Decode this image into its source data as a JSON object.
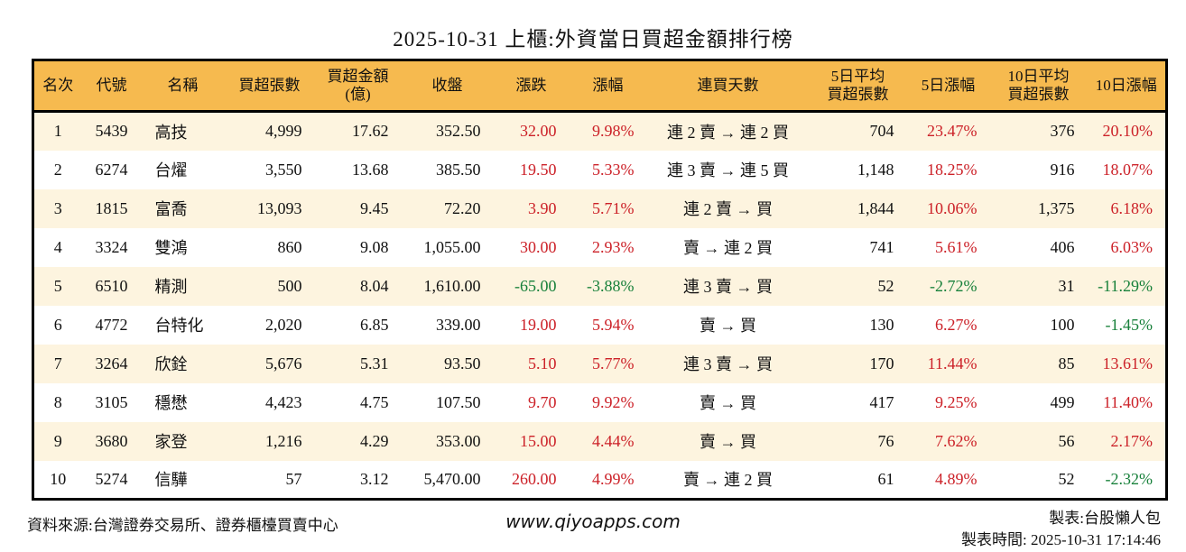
{
  "title": "2025-10-31 上櫃:外資當日買超金額排行榜",
  "colors": {
    "header_bg": "#F6BA4F",
    "row_alt_bg": "#FDF4DF",
    "up_red": "#CC2128",
    "down_green": "#17803A",
    "border": "#000000"
  },
  "chart_data": {
    "type": "table",
    "title": "2025-10-31 上櫃:外資當日買超金額排行榜",
    "columns": [
      {
        "key": "rank",
        "label": "名次",
        "align": "center"
      },
      {
        "key": "code",
        "label": "代號",
        "align": "center"
      },
      {
        "key": "name",
        "label": "名稱",
        "align": "left"
      },
      {
        "key": "lots",
        "label": "買超張數",
        "align": "right"
      },
      {
        "key": "amount",
        "label": "買超金額",
        "label2": "(億)",
        "align": "right"
      },
      {
        "key": "close",
        "label": "收盤",
        "align": "right"
      },
      {
        "key": "change",
        "label": "漲跌",
        "align": "right",
        "signed": true
      },
      {
        "key": "change_pct",
        "label": "漲幅",
        "align": "right",
        "signed": true
      },
      {
        "key": "streak",
        "label": "連買天數",
        "align": "center"
      },
      {
        "key": "avg5",
        "label": "5日平均",
        "label2": "買超張數",
        "align": "right"
      },
      {
        "key": "pct5",
        "label": "5日漲幅",
        "align": "right",
        "signed": true
      },
      {
        "key": "avg10",
        "label": "10日平均",
        "label2": "買超張數",
        "align": "right"
      },
      {
        "key": "pct10",
        "label": "10日漲幅",
        "align": "right",
        "signed": true
      }
    ],
    "rows": [
      {
        "rank": "1",
        "code": "5439",
        "name": "高技",
        "lots": "4,999",
        "amount": "17.62",
        "close": "352.50",
        "change": "32.00",
        "change_pct": "9.98%",
        "streak": "連 2 賣 → 連 2 買",
        "avg5": "704",
        "pct5": "23.47%",
        "avg10": "376",
        "pct10": "20.10%"
      },
      {
        "rank": "2",
        "code": "6274",
        "name": "台燿",
        "lots": "3,550",
        "amount": "13.68",
        "close": "385.50",
        "change": "19.50",
        "change_pct": "5.33%",
        "streak": "連 3 賣 → 連 5 買",
        "avg5": "1,148",
        "pct5": "18.25%",
        "avg10": "916",
        "pct10": "18.07%"
      },
      {
        "rank": "3",
        "code": "1815",
        "name": "富喬",
        "lots": "13,093",
        "amount": "9.45",
        "close": "72.20",
        "change": "3.90",
        "change_pct": "5.71%",
        "streak": "連 2 賣 → 買",
        "avg5": "1,844",
        "pct5": "10.06%",
        "avg10": "1,375",
        "pct10": "6.18%"
      },
      {
        "rank": "4",
        "code": "3324",
        "name": "雙鴻",
        "lots": "860",
        "amount": "9.08",
        "close": "1,055.00",
        "change": "30.00",
        "change_pct": "2.93%",
        "streak": "賣 → 連 2 買",
        "avg5": "741",
        "pct5": "5.61%",
        "avg10": "406",
        "pct10": "6.03%"
      },
      {
        "rank": "5",
        "code": "6510",
        "name": "精測",
        "lots": "500",
        "amount": "8.04",
        "close": "1,610.00",
        "change": "-65.00",
        "change_pct": "-3.88%",
        "streak": "連 3 賣 → 買",
        "avg5": "52",
        "pct5": "-2.72%",
        "avg10": "31",
        "pct10": "-11.29%"
      },
      {
        "rank": "6",
        "code": "4772",
        "name": "台特化",
        "lots": "2,020",
        "amount": "6.85",
        "close": "339.00",
        "change": "19.00",
        "change_pct": "5.94%",
        "streak": "賣 → 買",
        "avg5": "130",
        "pct5": "6.27%",
        "avg10": "100",
        "pct10": "-1.45%"
      },
      {
        "rank": "7",
        "code": "3264",
        "name": "欣銓",
        "lots": "5,676",
        "amount": "5.31",
        "close": "93.50",
        "change": "5.10",
        "change_pct": "5.77%",
        "streak": "連 3 賣 → 買",
        "avg5": "170",
        "pct5": "11.44%",
        "avg10": "85",
        "pct10": "13.61%"
      },
      {
        "rank": "8",
        "code": "3105",
        "name": "穩懋",
        "lots": "4,423",
        "amount": "4.75",
        "close": "107.50",
        "change": "9.70",
        "change_pct": "9.92%",
        "streak": "賣 → 買",
        "avg5": "417",
        "pct5": "9.25%",
        "avg10": "499",
        "pct10": "11.40%"
      },
      {
        "rank": "9",
        "code": "3680",
        "name": "家登",
        "lots": "1,216",
        "amount": "4.29",
        "close": "353.00",
        "change": "15.00",
        "change_pct": "4.44%",
        "streak": "賣 → 買",
        "avg5": "76",
        "pct5": "7.62%",
        "avg10": "56",
        "pct10": "2.17%"
      },
      {
        "rank": "10",
        "code": "5274",
        "name": "信驊",
        "lots": "57",
        "amount": "3.12",
        "close": "5,470.00",
        "change": "260.00",
        "change_pct": "4.99%",
        "streak": "賣 → 連 2 買",
        "avg5": "61",
        "pct5": "4.89%",
        "avg10": "52",
        "pct10": "-2.32%"
      }
    ]
  },
  "footer": {
    "source": "資料來源:台灣證券交易所、證券櫃檯買賣中心",
    "website": "www.qiyoapps.com",
    "maker": "製表:台股懶人包",
    "generated": "製表時間: 2025-10-31 17:14:46"
  }
}
